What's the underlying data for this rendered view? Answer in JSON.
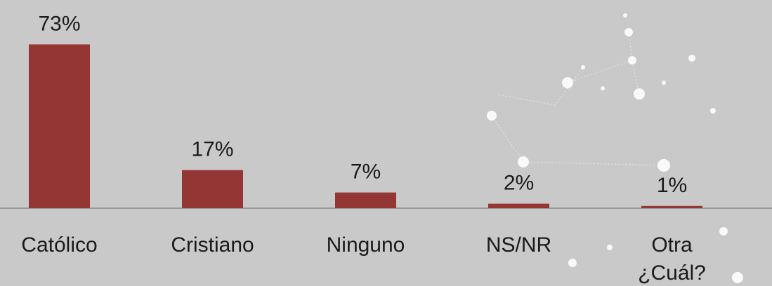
{
  "chart_data": {
    "type": "bar",
    "categories": [
      "Católico",
      "Cristiano",
      "Ninguno",
      "NS/NR",
      "Otra\n¿Cuál?"
    ],
    "values": [
      73,
      17,
      7,
      2,
      1
    ],
    "value_labels": [
      "73%",
      "17%",
      "7%",
      "2%",
      "1%"
    ],
    "color": "#943634"
  }
}
